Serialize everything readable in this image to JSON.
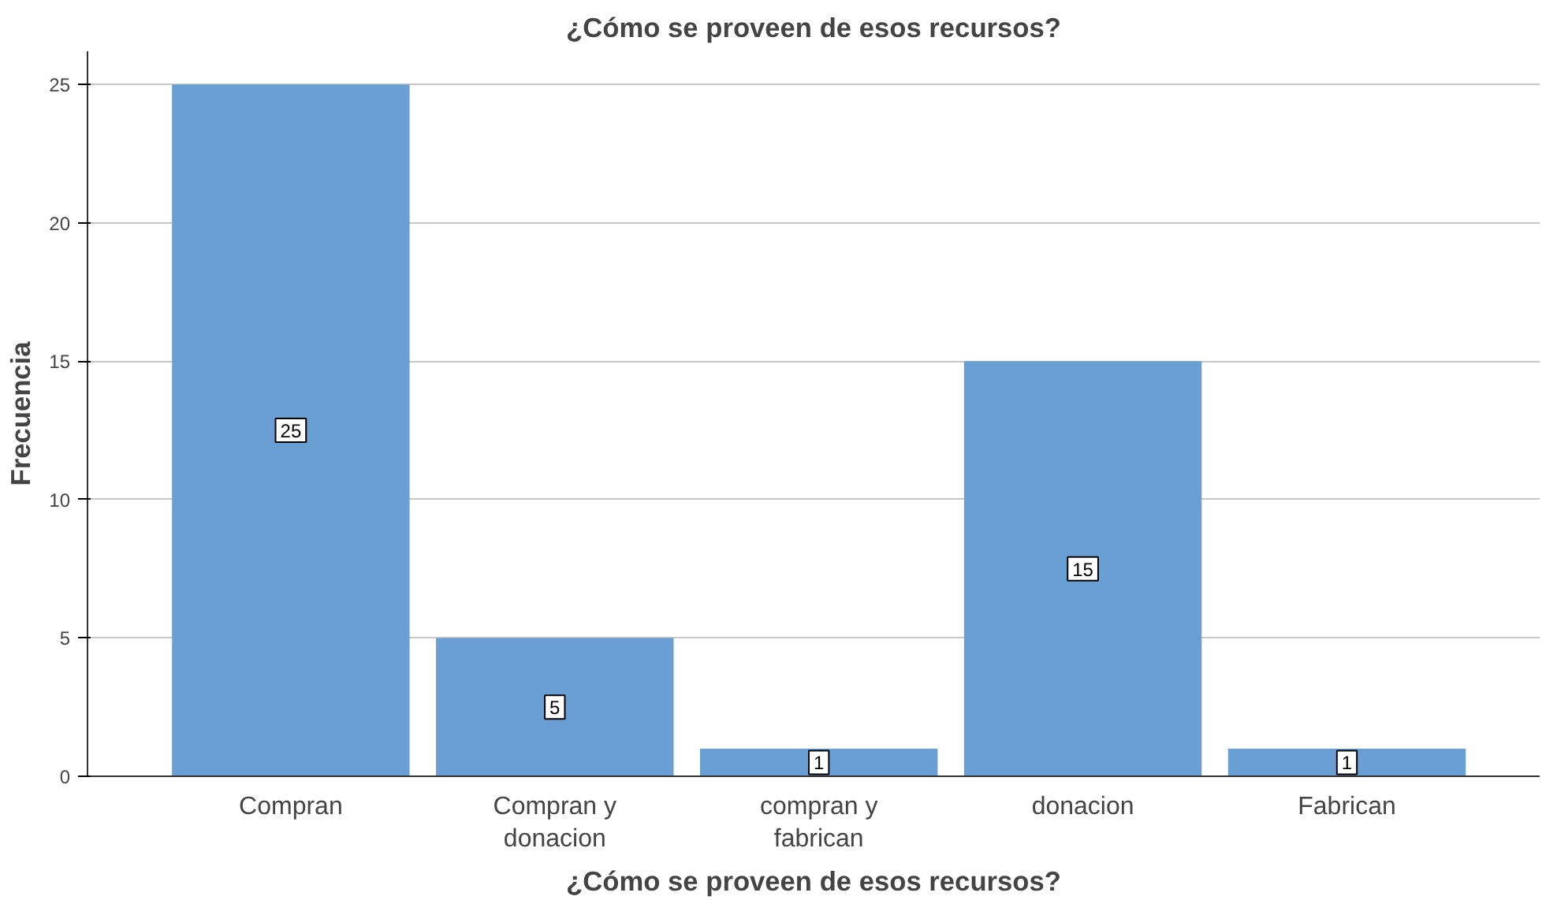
{
  "chart_data": {
    "type": "bar",
    "title": "¿Cómo se proveen de esos recursos?",
    "xlabel": "¿Cómo se proveen de esos recursos?",
    "ylabel": "Frecuencia",
    "categories": [
      "Compran",
      "Compran y donacion",
      "compran y fabrican",
      "donacion",
      "Fabrican"
    ],
    "values": [
      25,
      5,
      1,
      15,
      1
    ],
    "color": "#6a9fd4",
    "ylim": [
      0,
      26.2
    ],
    "yticks": [
      0,
      5,
      10,
      15,
      20,
      25
    ],
    "grid": "y",
    "data_labels": true
  }
}
